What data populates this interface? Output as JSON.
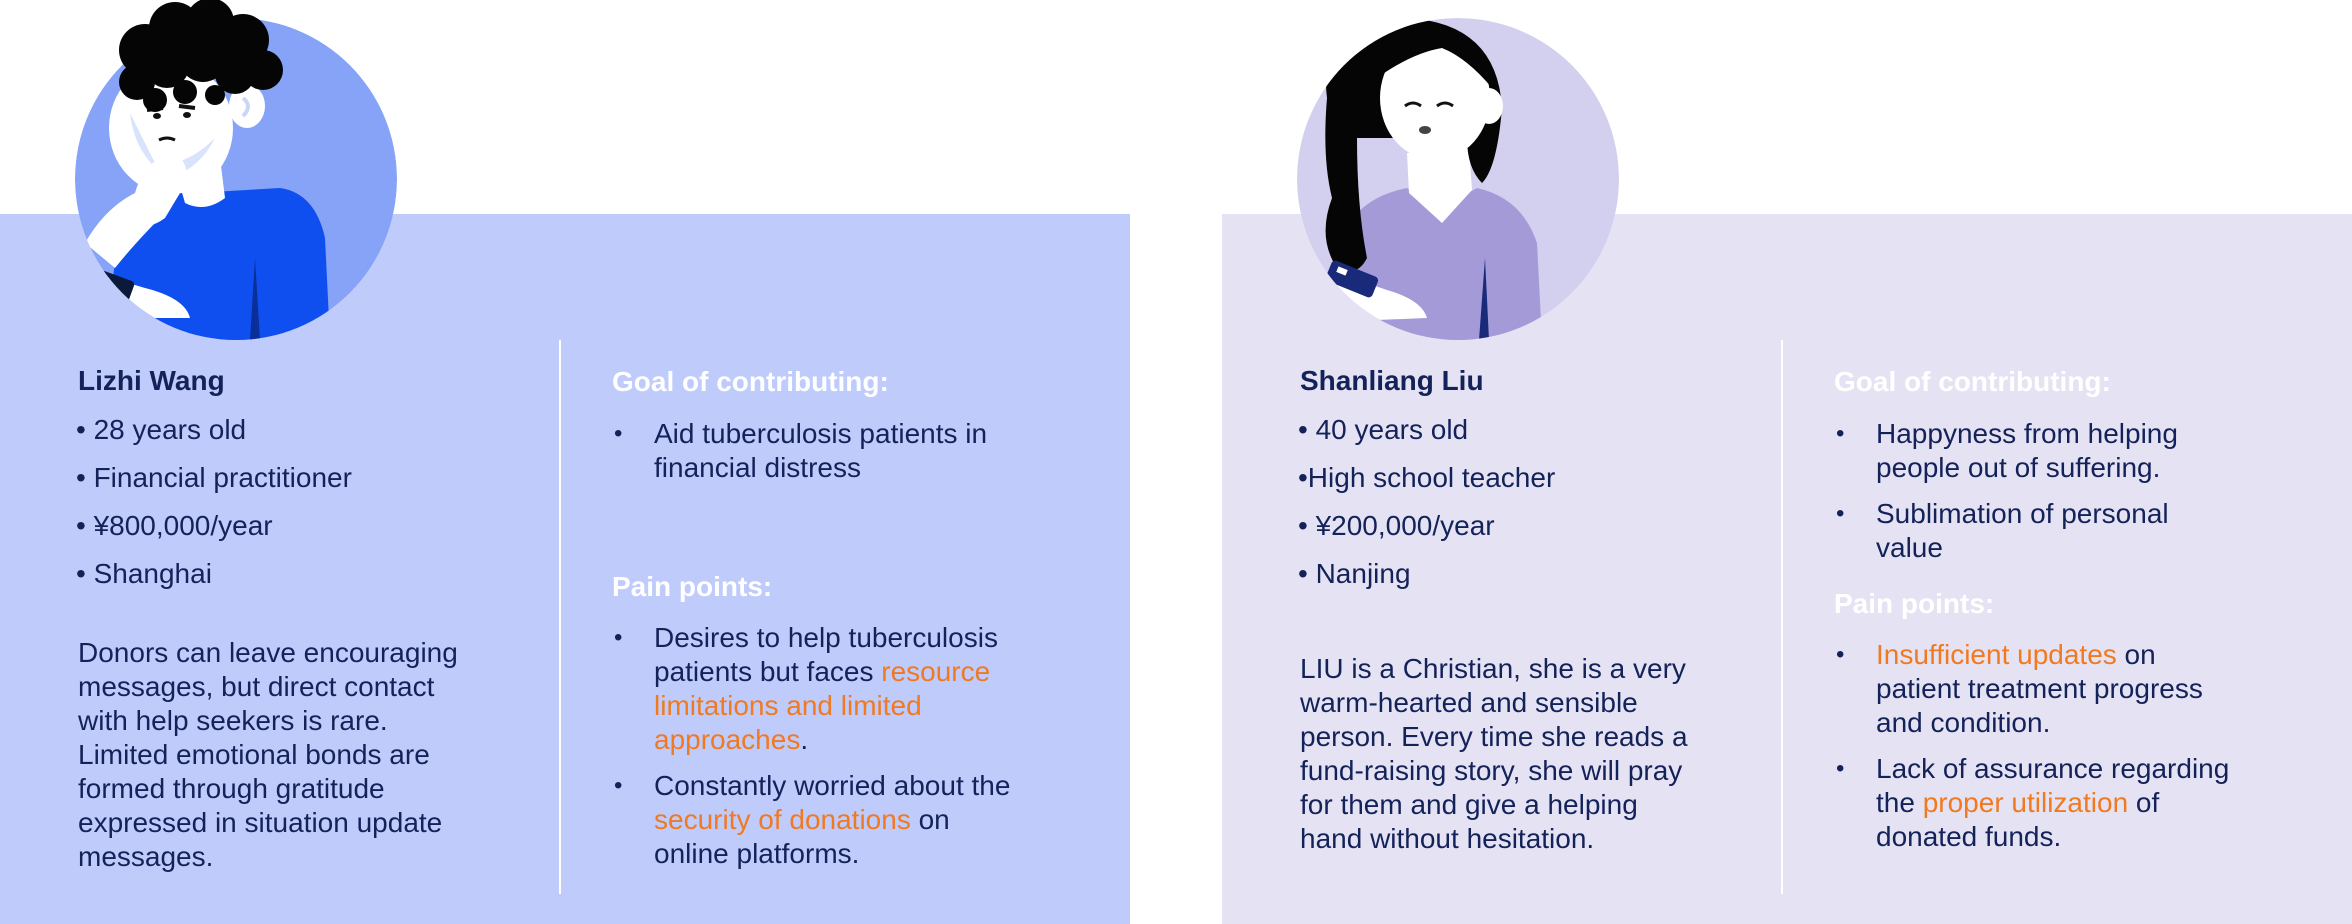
{
  "colors": {
    "panel_left": "#bfcbfb",
    "panel_right": "#e5e3f3",
    "avatar_left": "#86a3f8",
    "avatar_right": "#d3cfee",
    "text": "#14225a",
    "highlight": "#f07a22",
    "heading": "#ffffff"
  },
  "personas": [
    {
      "name": "Lizhi Wang",
      "facts": [
        "• 28 years old",
        "• Financial practitioner",
        "• ¥800,000/year",
        "• Shanghai"
      ],
      "description": [
        "Donors can leave encouraging",
        "messages, but direct contact",
        "with help seekers is rare.",
        "Limited emotional bonds are",
        "formed through gratitude",
        "expressed in situation update",
        "messages."
      ],
      "goal_heading": "Goal of contributing:",
      "goals": [
        {
          "lines": [
            "Aid tuberculosis patients in",
            "financial distress"
          ]
        }
      ],
      "pain_heading": "Pain points:",
      "pains": [
        {
          "l1": "Desires to help tuberculosis",
          "l2_pre": "patients but faces ",
          "l2_hl": "resource",
          "l3_hl": "limitations and limited",
          "l4_hl": "approaches",
          "l4_post": "."
        },
        {
          "l1": "Constantly worried about the",
          "l2_hl": "security of donations",
          "l2_post": " on",
          "l3": "online platforms."
        }
      ]
    },
    {
      "name": "Shanliang Liu",
      "facts": [
        "• 40 years old",
        "•High school teacher",
        "• ¥200,000/year",
        "• Nanjing"
      ],
      "description": [
        "LIU is a Christian, she is a very",
        "warm-hearted and sensible",
        "person. Every time she reads a",
        "fund-raising story, she will pray",
        "for them and give a helping",
        "hand without hesitation."
      ],
      "goal_heading": "Goal of contributing:",
      "goals": [
        {
          "lines": [
            "Happyness from helping",
            "people out of suffering."
          ]
        },
        {
          "lines": [
            "Sublimation of personal",
            "value"
          ]
        }
      ],
      "pain_heading": "Pain points:",
      "pains": [
        {
          "l1_hl": "Insufficient updates",
          "l1_post": " on",
          "l2": "patient treatment progress",
          "l3": "and condition."
        },
        {
          "l1": "Lack of assurance regarding",
          "l2_pre": "the ",
          "l2_hl": "proper utilization",
          "l2_post": " of",
          "l3": "donated funds."
        }
      ]
    }
  ]
}
